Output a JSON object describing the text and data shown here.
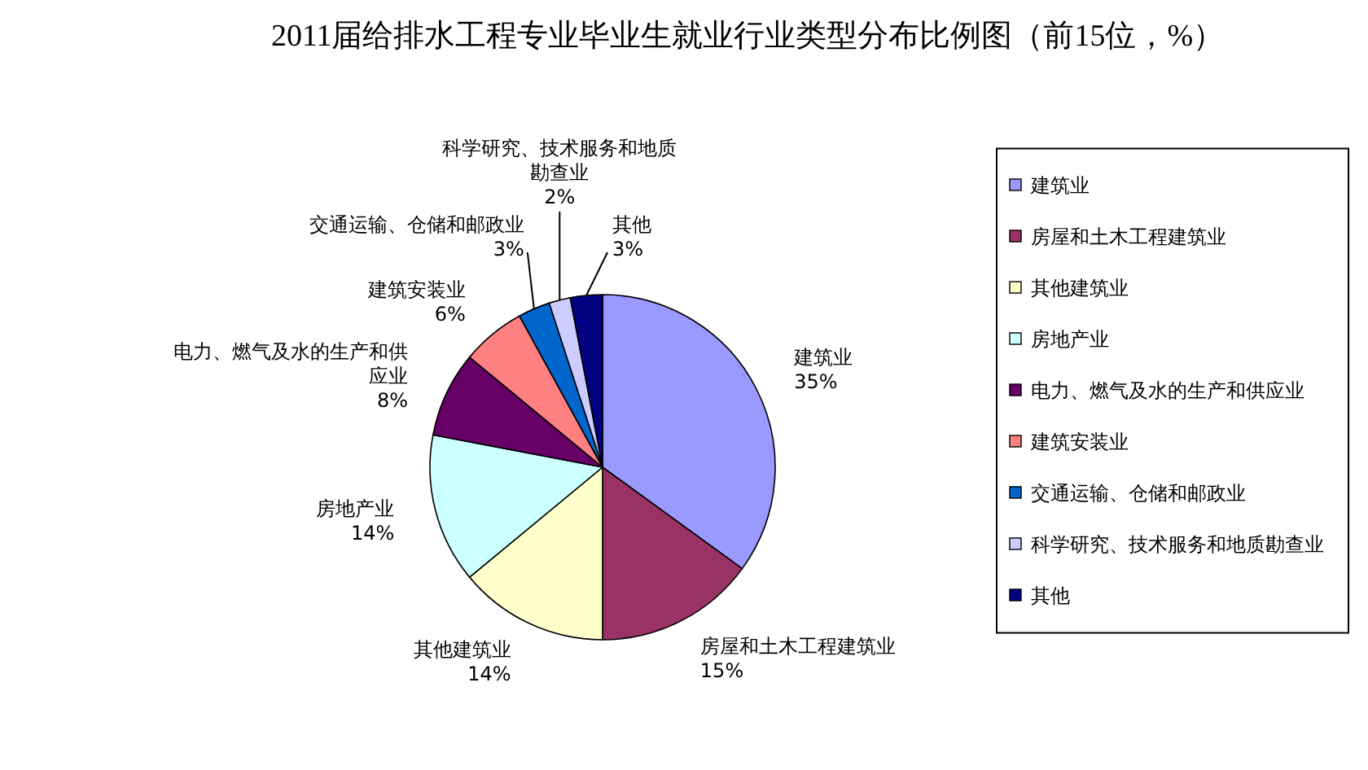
{
  "chart_data": {
    "type": "pie",
    "title": "2011届给排水工程专业毕业生就业行业类型分布比例图（前15位，%）",
    "categories": [
      "建筑业",
      "房屋和土木工程建筑业",
      "其他建筑业",
      "房地产业",
      "电力、燃气及水的生产和供应业",
      "建筑安装业",
      "交通运输、仓储和邮政业",
      "科学研究、技术服务和地质勘查业",
      "其他"
    ],
    "values": [
      35,
      15,
      14,
      14,
      8,
      6,
      3,
      2,
      3
    ],
    "value_labels": [
      "35%",
      "15%",
      "14%",
      "14%",
      "8%",
      "6%",
      "3%",
      "2%",
      "3%"
    ],
    "colors": [
      "#9999ff",
      "#993366",
      "#ffffcc",
      "#ccffff",
      "#660066",
      "#ff8080",
      "#0066cc",
      "#ccccff",
      "#000080"
    ],
    "legend": "right"
  }
}
